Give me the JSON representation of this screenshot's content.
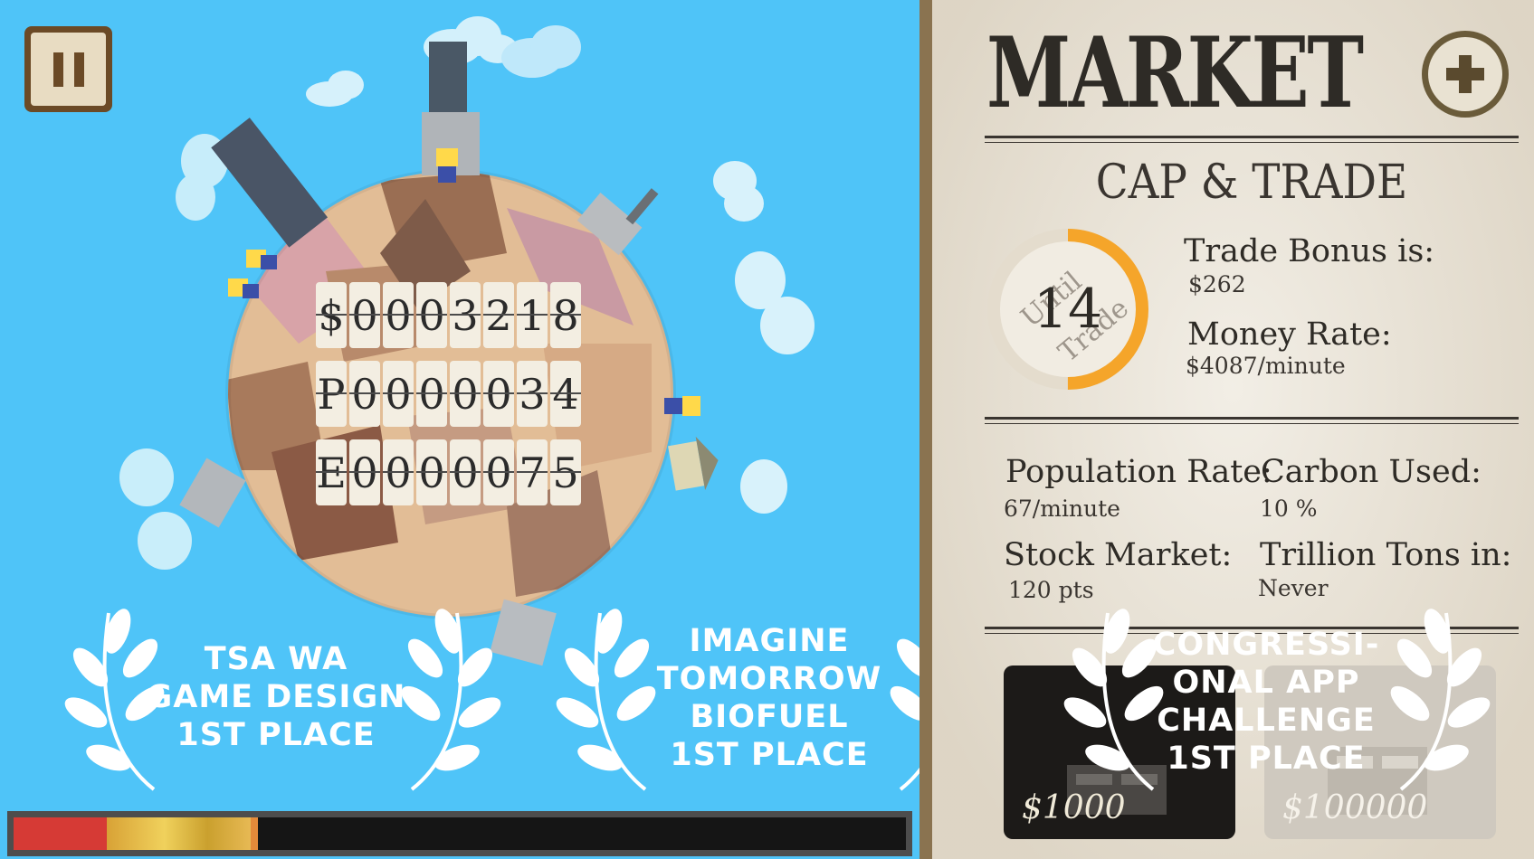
{
  "game": {
    "pause_icon": "pause-icon",
    "counters": {
      "money": "$0003218",
      "population": "P0000034",
      "emissions": "E0000075"
    },
    "awards": [
      {
        "lines": [
          "TSA WA",
          "Game Design",
          "1st Place"
        ]
      },
      {
        "lines": [
          "Imagine",
          "Tomorrow",
          "Biofuel",
          "1st Place"
        ]
      },
      {
        "lines": [
          "Congressi-",
          "onal App",
          "Challenge",
          "1st Place"
        ]
      }
    ],
    "progress": {
      "red_fraction": 0.104,
      "gold_fraction": 0.266
    }
  },
  "market": {
    "title": "MARKET",
    "plus_icon": "plus-icon",
    "section_title": "CAP & TRADE",
    "until_trade": {
      "count": "14",
      "label_top": "Until",
      "label_bottom": "Trade",
      "progress": 0.5
    },
    "trade_bonus": {
      "label": "Trade Bonus is:",
      "value": "$262"
    },
    "money_rate": {
      "label": "Money Rate:",
      "value": "$4087/minute"
    },
    "population_rate": {
      "label": "Population Rate:",
      "value": "67/minute"
    },
    "carbon_used": {
      "label": "Carbon Used:",
      "value": "10 %"
    },
    "stock_market": {
      "label": "Stock Market:",
      "value": "120 pts"
    },
    "trillion_tons": {
      "label": "Trillion Tons in:",
      "value": "Never"
    },
    "cards": [
      {
        "price": "$1000",
        "state": "available"
      },
      {
        "price": "$100000",
        "state": "locked"
      }
    ],
    "colors": {
      "ring": "#f5a52a",
      "paper": "#ebe5d8",
      "ink": "#2e2b26"
    }
  }
}
